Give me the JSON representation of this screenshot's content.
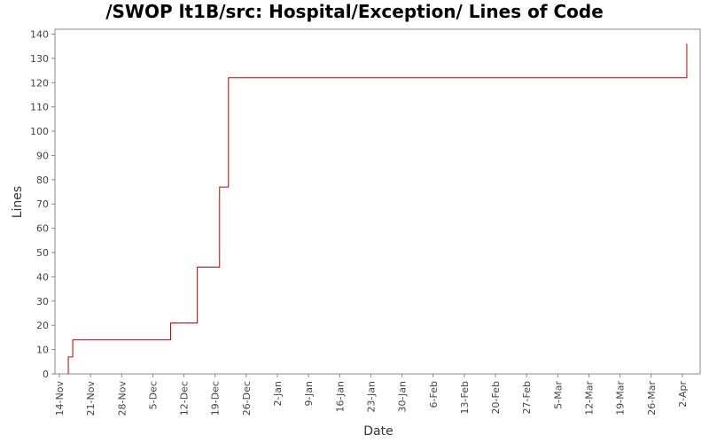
{
  "chart_data": {
    "type": "line",
    "title": "/SWOP lt1B/src: Hospital/Exception/ Lines of Code",
    "xlabel": "Date",
    "ylabel": "Lines",
    "ylim": [
      0,
      142
    ],
    "yticks": [
      0,
      10,
      20,
      30,
      40,
      50,
      60,
      70,
      80,
      90,
      100,
      110,
      120,
      130,
      140
    ],
    "xlim": [
      "2007-11-13",
      "2008-04-06"
    ],
    "xticks": [
      {
        "date": "2007-11-14",
        "label": "14-Nov"
      },
      {
        "date": "2007-11-21",
        "label": "21-Nov"
      },
      {
        "date": "2007-11-28",
        "label": "28-Nov"
      },
      {
        "date": "2007-12-05",
        "label": "5-Dec"
      },
      {
        "date": "2007-12-12",
        "label": "12-Dec"
      },
      {
        "date": "2007-12-19",
        "label": "19-Dec"
      },
      {
        "date": "2007-12-26",
        "label": "26-Dec"
      },
      {
        "date": "2008-01-02",
        "label": "2-Jan"
      },
      {
        "date": "2008-01-09",
        "label": "9-Jan"
      },
      {
        "date": "2008-01-16",
        "label": "16-Jan"
      },
      {
        "date": "2008-01-23",
        "label": "23-Jan"
      },
      {
        "date": "2008-01-30",
        "label": "30-Jan"
      },
      {
        "date": "2008-02-06",
        "label": "6-Feb"
      },
      {
        "date": "2008-02-13",
        "label": "13-Feb"
      },
      {
        "date": "2008-02-20",
        "label": "20-Feb"
      },
      {
        "date": "2008-02-27",
        "label": "27-Feb"
      },
      {
        "date": "2008-03-05",
        "label": "5-Mar"
      },
      {
        "date": "2008-03-12",
        "label": "12-Mar"
      },
      {
        "date": "2008-03-19",
        "label": "19-Mar"
      },
      {
        "date": "2008-03-26",
        "label": "26-Mar"
      },
      {
        "date": "2008-04-02",
        "label": "2-Apr"
      }
    ],
    "step": true,
    "grid": false,
    "series": [
      {
        "color": "#c00000",
        "points": [
          {
            "x": "2007-11-16",
            "y": 0
          },
          {
            "x": "2007-11-16",
            "y": 7
          },
          {
            "x": "2007-11-17",
            "y": 14
          },
          {
            "x": "2007-12-09",
            "y": 21
          },
          {
            "x": "2007-12-15",
            "y": 44
          },
          {
            "x": "2007-12-20",
            "y": 77
          },
          {
            "x": "2007-12-22",
            "y": 122
          },
          {
            "x": "2008-04-03",
            "y": 136
          }
        ]
      }
    ]
  }
}
